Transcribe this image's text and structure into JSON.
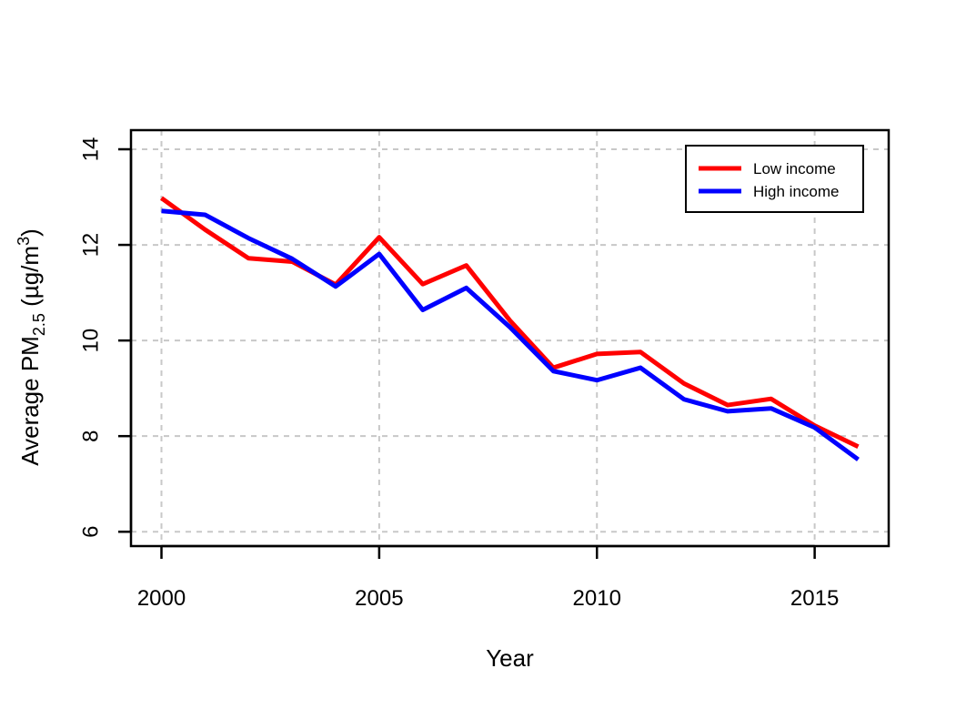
{
  "chart_data": {
    "type": "line",
    "title": "",
    "xlabel": "Year",
    "ylabel": {
      "main": "Average PM",
      "sub": "2.5",
      "unit_open": " (µg/m",
      "sup": "3",
      "unit_close": ")"
    },
    "xlim": [
      1999.3,
      2016.7
    ],
    "ylim": [
      5.7,
      14.4
    ],
    "x_ticks": [
      2000,
      2005,
      2010,
      2015
    ],
    "y_ticks": [
      6,
      8,
      10,
      12,
      14
    ],
    "grid": true,
    "legend_position": "top-right",
    "x": [
      2000,
      2001,
      2002,
      2003,
      2004,
      2005,
      2006,
      2007,
      2008,
      2009,
      2010,
      2011,
      2012,
      2013,
      2014,
      2015,
      2016
    ],
    "series": [
      {
        "name": "Low income",
        "color": "#ff0000",
        "values": [
          12.98,
          12.32,
          11.72,
          11.65,
          11.17,
          12.16,
          11.18,
          11.57,
          10.42,
          9.43,
          9.72,
          9.76,
          9.1,
          8.65,
          8.78,
          8.22,
          7.78
        ]
      },
      {
        "name": "High income",
        "color": "#0000ff",
        "values": [
          12.71,
          12.63,
          12.14,
          11.71,
          11.13,
          11.81,
          10.64,
          11.1,
          10.28,
          9.36,
          9.17,
          9.43,
          8.77,
          8.52,
          8.58,
          8.18,
          7.51
        ]
      }
    ]
  }
}
